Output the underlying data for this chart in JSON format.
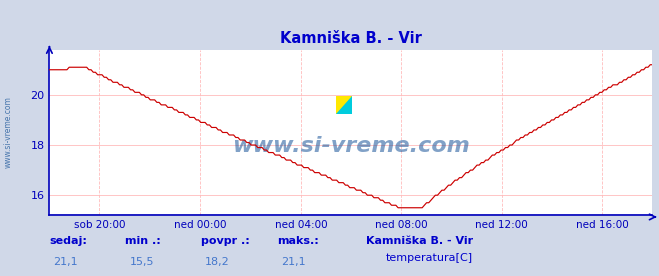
{
  "title": "Kamniška B. - Vir",
  "title_color": "#0000cc",
  "bg_color": "#d0d8e8",
  "plot_bg_color": "#ffffff",
  "grid_color": "#ffbbbb",
  "line_color": "#cc0000",
  "axis_color": "#0000bb",
  "x_tick_labels": [
    "sob 20:00",
    "ned 00:00",
    "ned 04:00",
    "ned 08:00",
    "ned 12:00",
    "ned 16:00"
  ],
  "x_tick_positions": [
    0.083,
    0.25,
    0.417,
    0.583,
    0.75,
    0.917
  ],
  "y_ticks": [
    16,
    18,
    20
  ],
  "ylim": [
    15.2,
    21.8
  ],
  "xlim": [
    0,
    1
  ],
  "watermark": "www.si-vreme.com",
  "watermark_color": "#1a5599",
  "sidewatermark": "www.si-vreme.com",
  "footer_col1_label": "sedaj:",
  "footer_col2_label": "min .:",
  "footer_col3_label": "povpr .:",
  "footer_col4_label": "maks.:",
  "footer_col1_val": "21,1",
  "footer_col2_val": "15,5",
  "footer_col3_val": "18,2",
  "footer_col4_val": "21,1",
  "footer_series_name": "Kamniška B. - Vir",
  "footer_series_label": "temperatura[C]",
  "footer_color": "#0000cc",
  "footer_val_color": "#4477cc"
}
